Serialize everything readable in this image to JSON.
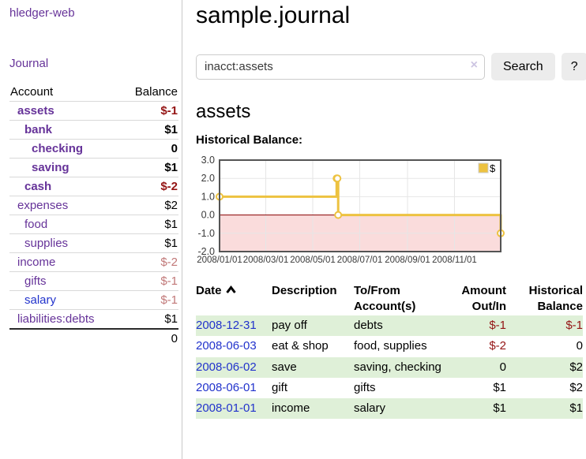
{
  "app": {
    "title": "hledger-web"
  },
  "colors": {
    "link_purple": "#663399",
    "link_blue": "#2233cc",
    "negative_strong": "#941414",
    "negative_soft": "#c17878",
    "row_green": "#dff0d8",
    "chart_line": "#edc240",
    "chart_negative_region": "#fadcdc",
    "chart_zero_line": "#8b0000"
  },
  "sidebar": {
    "journal_link": "Journal",
    "table": {
      "account_header": "Account",
      "balance_header": "Balance",
      "rows": [
        {
          "name": "assets",
          "balance": "$-1",
          "depth": 1,
          "bold": true,
          "balance_color": "strong-negative"
        },
        {
          "name": "bank",
          "balance": "$1",
          "depth": 2,
          "bold": true,
          "balance_color": "normal"
        },
        {
          "name": "checking",
          "balance": "0",
          "depth": 3,
          "bold": true,
          "balance_color": "normal"
        },
        {
          "name": "saving",
          "balance": "$1",
          "depth": 3,
          "bold": true,
          "balance_color": "normal"
        },
        {
          "name": "cash",
          "balance": "$-2",
          "depth": 2,
          "bold": true,
          "balance_color": "strong-negative"
        },
        {
          "name": "expenses",
          "balance": "$2",
          "depth": 1,
          "bold": false,
          "balance_color": "normal"
        },
        {
          "name": "food",
          "balance": "$1",
          "depth": 2,
          "bold": false,
          "balance_color": "normal"
        },
        {
          "name": "supplies",
          "balance": "$1",
          "depth": 2,
          "bold": false,
          "balance_color": "normal"
        },
        {
          "name": "income",
          "balance": "$-2",
          "depth": 1,
          "bold": false,
          "balance_color": "soft-negative"
        },
        {
          "name": "gifts",
          "balance": "$-1",
          "depth": 2,
          "bold": false,
          "balance_color": "soft-negative"
        },
        {
          "name": "salary",
          "balance": "$-1",
          "depth": 2,
          "bold": false,
          "balance_color": "soft-negative",
          "link_color": "blue"
        },
        {
          "name": "liabilities:debts",
          "balance": "$1",
          "depth": 1,
          "bold": false,
          "balance_color": "normal"
        }
      ],
      "total": "0"
    }
  },
  "main": {
    "title": "sample.journal",
    "search": {
      "value": "inacct:assets",
      "clear_icon": "×",
      "button_label": "Search",
      "help_label": "?"
    },
    "account_heading": "assets",
    "chart_label": "Historical Balance:"
  },
  "chart_data": {
    "type": "line",
    "step": true,
    "title": "Historical Balance:",
    "series": [
      {
        "name": "$",
        "color": "#edc240",
        "points": [
          [
            "2008-01-01",
            1
          ],
          [
            "2008-06-01",
            2
          ],
          [
            "2008-06-02",
            2
          ],
          [
            "2008-06-03",
            0
          ],
          [
            "2008-12-31",
            -1
          ]
        ]
      }
    ],
    "xrange": [
      "2008-01-01",
      "2008-12-31"
    ],
    "ylim": [
      -2,
      3
    ],
    "yticks": [
      3,
      2,
      1,
      0,
      -1,
      -2
    ],
    "ytick_labels": [
      "3.0",
      "2.0",
      "1.0",
      "0.0",
      "-1.0",
      "-2.0"
    ],
    "xtick_labels": [
      "2008/01/01",
      "2008/03/01",
      "2008/05/01",
      "2008/07/01",
      "2008/09/01",
      "2008/11/01"
    ],
    "legend": {
      "label": "$",
      "position": "top-right"
    },
    "grid": true
  },
  "register": {
    "headers": {
      "date": "Date",
      "sort_indicator": "ascending",
      "description": "Description",
      "accounts": "To/From Account(s)",
      "amount": "Amount Out/In",
      "balance": "Historical Balance"
    },
    "rows": [
      {
        "date": "2008-12-31",
        "description": "pay off",
        "accounts": "debts",
        "amount": "$-1",
        "amount_negative": true,
        "balance": "$-1",
        "balance_negative": true
      },
      {
        "date": "2008-06-03",
        "description": "eat & shop",
        "accounts": "food, supplies",
        "amount": "$-2",
        "amount_negative": true,
        "balance": "0",
        "balance_negative": false
      },
      {
        "date": "2008-06-02",
        "description": "save",
        "accounts": "saving, checking",
        "amount": "0",
        "amount_negative": false,
        "balance": "$2",
        "balance_negative": false
      },
      {
        "date": "2008-06-01",
        "description": "gift",
        "accounts": "gifts",
        "amount": "$1",
        "amount_negative": false,
        "balance": "$2",
        "balance_negative": false
      },
      {
        "date": "2008-01-01",
        "description": "income",
        "accounts": "salary",
        "amount": "$1",
        "amount_negative": false,
        "balance": "$1",
        "balance_negative": false
      }
    ]
  }
}
